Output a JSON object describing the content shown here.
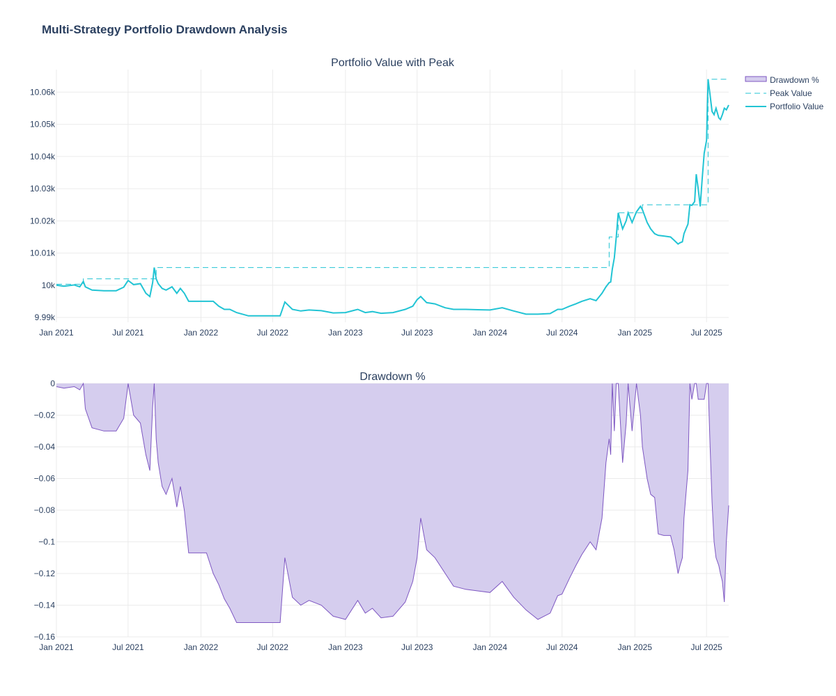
{
  "title": "Multi-Strategy Portfolio Drawdown Analysis",
  "colors": {
    "portfolio": "#22c4d4",
    "peak": "#22c4d4",
    "drawdown_line": "#7e57c2",
    "drawdown_fill": "#d5cdee",
    "grid": "#ebebeb"
  },
  "chart_data": [
    {
      "type": "line",
      "title": "Portfolio Value with Peak",
      "xlabel": "",
      "ylabel": "",
      "x_ticks": [
        "Jan 2021",
        "Jul 2021",
        "Jan 2022",
        "Jul 2022",
        "Jan 2023",
        "Jul 2023",
        "Jan 2024",
        "Jul 2024",
        "Jan 2025",
        "Jul 2025"
      ],
      "y_ticks": [
        "9.99k",
        "10k",
        "10.01k",
        "10.02k",
        "10.03k",
        "10.04k",
        "10.05k",
        "10.06k"
      ],
      "xlim": [
        "2021-01-01",
        "2025-08-26"
      ],
      "ylim": [
        9988.5,
        10067
      ],
      "grid": true,
      "legend": "top-right",
      "series": [
        {
          "name": "Peak Value",
          "style": "dashed",
          "x": [
            "2021-01-01",
            "2021-03-10",
            "2021-03-10",
            "2021-09-10",
            "2021-09-10",
            "2024-10-28",
            "2024-10-28",
            "2024-11-20",
            "2024-11-20",
            "2025-01-20",
            "2025-01-20",
            "2025-07-05",
            "2025-07-05",
            "2025-08-26"
          ],
          "y": [
            10000.3,
            10000.3,
            10002,
            10002,
            10005.5,
            10005.5,
            10015,
            10015,
            10022.5,
            10022.5,
            10025,
            10025,
            10064,
            10064
          ]
        },
        {
          "name": "Portfolio Value",
          "style": "solid",
          "x": [
            "2021-01-01",
            "2021-01-20",
            "2021-02-15",
            "2021-03-01",
            "2021-03-10",
            "2021-03-15",
            "2021-04-01",
            "2021-05-01",
            "2021-06-01",
            "2021-06-20",
            "2021-07-01",
            "2021-07-15",
            "2021-08-01",
            "2021-08-15",
            "2021-08-25",
            "2021-09-01",
            "2021-09-05",
            "2021-09-10",
            "2021-09-15",
            "2021-09-25",
            "2021-10-05",
            "2021-10-20",
            "2021-11-01",
            "2021-11-10",
            "2021-11-20",
            "2021-12-01",
            "2021-12-10",
            "2022-01-15",
            "2022-02-01",
            "2022-02-15",
            "2022-03-01",
            "2022-03-15",
            "2022-04-01",
            "2022-05-01",
            "2022-06-01",
            "2022-07-01",
            "2022-07-20",
            "2022-08-01",
            "2022-08-20",
            "2022-09-10",
            "2022-10-01",
            "2022-11-01",
            "2022-12-01",
            "2023-01-01",
            "2023-02-01",
            "2023-02-20",
            "2023-03-10",
            "2023-04-01",
            "2023-05-01",
            "2023-06-01",
            "2023-06-20",
            "2023-07-01",
            "2023-07-10",
            "2023-07-25",
            "2023-08-15",
            "2023-09-10",
            "2023-10-01",
            "2023-11-01",
            "2023-12-01",
            "2024-01-01",
            "2024-02-01",
            "2024-03-01",
            "2024-04-01",
            "2024-05-01",
            "2024-06-01",
            "2024-06-20",
            "2024-07-01",
            "2024-07-20",
            "2024-08-05",
            "2024-08-20",
            "2024-09-10",
            "2024-09-25",
            "2024-10-10",
            "2024-10-20",
            "2024-10-28",
            "2024-11-01",
            "2024-11-05",
            "2024-11-10",
            "2024-11-15",
            "2024-11-20",
            "2024-12-01",
            "2024-12-10",
            "2024-12-15",
            "2024-12-25",
            "2025-01-05",
            "2025-01-15",
            "2025-01-20",
            "2025-02-01",
            "2025-02-10",
            "2025-02-20",
            "2025-03-01",
            "2025-03-15",
            "2025-04-01",
            "2025-04-10",
            "2025-04-20",
            "2025-04-25",
            "2025-05-01",
            "2025-05-05",
            "2025-05-10",
            "2025-05-15",
            "2025-05-20",
            "2025-05-25",
            "2025-06-01",
            "2025-06-05",
            "2025-06-10",
            "2025-06-15",
            "2025-06-20",
            "2025-06-25",
            "2025-07-01",
            "2025-07-05",
            "2025-07-10",
            "2025-07-15",
            "2025-07-20",
            "2025-07-25",
            "2025-08-01",
            "2025-08-05",
            "2025-08-10",
            "2025-08-15",
            "2025-08-20",
            "2025-08-26"
          ],
          "y": [
            10000,
            9999.7,
            10000.1,
            9999.5,
            10001.2,
            9999.5,
            9998.5,
            9998.3,
            9998.3,
            9999.4,
            10001.5,
            10000.2,
            10000.5,
            9997.5,
            9996.5,
            10000.8,
            10005.5,
            10002,
            10000.5,
            9999,
            9998.5,
            9999.5,
            9997.5,
            9999,
            9997.5,
            9995,
            9995,
            9995,
            9995,
            9993.5,
            9992.5,
            9992.5,
            9991.5,
            9990.5,
            9990.5,
            9990.5,
            9990.5,
            9994.8,
            9992.5,
            9992,
            9992.3,
            9992.1,
            9991.4,
            9991.5,
            9992.5,
            9991.5,
            9991.8,
            9991.3,
            9991.5,
            9992.5,
            9993.5,
            9995.5,
            9996.5,
            9994.6,
            9994.2,
            9993,
            9992.5,
            9992.5,
            9992.4,
            9992.3,
            9993,
            9992,
            9991,
            9991,
            9991.2,
            9992.5,
            9992.5,
            9993.5,
            9994.2,
            9995,
            9995.8,
            9995.2,
            9997.5,
            9999.5,
            10000.8,
            10001,
            10005,
            10008.5,
            10015,
            10022.5,
            10017.5,
            10020,
            10022.5,
            10019.5,
            10022.8,
            10024.5,
            10023.5,
            10019.5,
            10017.5,
            10016,
            10015.5,
            10015.3,
            10015,
            10014,
            10012.8,
            10013.2,
            10013.5,
            10016,
            10017.5,
            10019,
            10025,
            10024.8,
            10026,
            10034.5,
            10030,
            10024.5,
            10033,
            10041,
            10045,
            10064,
            10059,
            10054,
            10053,
            10055,
            10052,
            10051.5,
            10053,
            10055,
            10054.5,
            10056
          ]
        }
      ]
    },
    {
      "type": "area",
      "title": "Drawdown %",
      "xlabel": "",
      "ylabel": "",
      "x_ticks": [
        "Jan 2021",
        "Jul 2021",
        "Jan 2022",
        "Jul 2022",
        "Jan 2023",
        "Jul 2023",
        "Jan 2024",
        "Jul 2024",
        "Jan 2025",
        "Jul 2025"
      ],
      "y_ticks": [
        "0",
        "−0.02",
        "−0.04",
        "−0.06",
        "−0.08",
        "−0.1",
        "−0.12",
        "−0.14",
        "−0.16"
      ],
      "xlim": [
        "2021-01-01",
        "2025-08-26"
      ],
      "ylim": [
        -0.16,
        0
      ],
      "grid": true,
      "series": [
        {
          "name": "Drawdown %",
          "x": [
            "2021-01-01",
            "2021-01-20",
            "2021-02-15",
            "2021-03-01",
            "2021-03-10",
            "2021-03-15",
            "2021-04-01",
            "2021-05-01",
            "2021-06-01",
            "2021-06-20",
            "2021-07-01",
            "2021-07-15",
            "2021-08-01",
            "2021-08-15",
            "2021-08-25",
            "2021-09-01",
            "2021-09-05",
            "2021-09-10",
            "2021-09-15",
            "2021-09-25",
            "2021-10-05",
            "2021-10-20",
            "2021-11-01",
            "2021-11-10",
            "2021-11-20",
            "2021-12-01",
            "2021-12-10",
            "2022-01-15",
            "2022-02-01",
            "2022-02-15",
            "2022-03-01",
            "2022-03-15",
            "2022-04-01",
            "2022-05-01",
            "2022-06-01",
            "2022-07-01",
            "2022-07-20",
            "2022-08-01",
            "2022-08-20",
            "2022-09-10",
            "2022-10-01",
            "2022-11-01",
            "2022-12-01",
            "2023-01-01",
            "2023-02-01",
            "2023-02-20",
            "2023-03-10",
            "2023-04-01",
            "2023-05-01",
            "2023-06-01",
            "2023-06-20",
            "2023-07-01",
            "2023-07-10",
            "2023-07-25",
            "2023-08-15",
            "2023-09-10",
            "2023-10-01",
            "2023-11-01",
            "2023-12-01",
            "2024-01-01",
            "2024-02-01",
            "2024-03-01",
            "2024-04-01",
            "2024-05-01",
            "2024-06-01",
            "2024-06-20",
            "2024-07-01",
            "2024-07-20",
            "2024-08-05",
            "2024-08-20",
            "2024-09-10",
            "2024-09-25",
            "2024-10-10",
            "2024-10-20",
            "2024-10-28",
            "2024-11-01",
            "2024-11-05",
            "2024-11-10",
            "2024-11-15",
            "2024-11-20",
            "2024-12-01",
            "2024-12-10",
            "2024-12-15",
            "2024-12-25",
            "2025-01-05",
            "2025-01-15",
            "2025-01-20",
            "2025-02-01",
            "2025-02-10",
            "2025-02-20",
            "2025-03-01",
            "2025-03-15",
            "2025-04-01",
            "2025-04-10",
            "2025-04-20",
            "2025-04-25",
            "2025-05-01",
            "2025-05-05",
            "2025-05-10",
            "2025-05-15",
            "2025-05-20",
            "2025-05-25",
            "2025-06-01",
            "2025-06-05",
            "2025-06-10",
            "2025-06-15",
            "2025-06-20",
            "2025-06-25",
            "2025-07-01",
            "2025-07-05",
            "2025-07-10",
            "2025-07-15",
            "2025-07-20",
            "2025-07-25",
            "2025-08-01",
            "2025-08-05",
            "2025-08-10",
            "2025-08-15",
            "2025-08-20",
            "2025-08-26"
          ],
          "y": [
            -0.002,
            -0.003,
            -0.002,
            -0.004,
            0,
            -0.016,
            -0.028,
            -0.03,
            -0.03,
            -0.022,
            0,
            -0.02,
            -0.025,
            -0.045,
            -0.055,
            -0.015,
            0,
            -0.035,
            -0.05,
            -0.065,
            -0.07,
            -0.06,
            -0.078,
            -0.065,
            -0.08,
            -0.107,
            -0.107,
            -0.107,
            -0.12,
            -0.127,
            -0.136,
            -0.142,
            -0.151,
            -0.151,
            -0.151,
            -0.151,
            -0.151,
            -0.11,
            -0.135,
            -0.14,
            -0.137,
            -0.14,
            -0.147,
            -0.149,
            -0.137,
            -0.145,
            -0.142,
            -0.148,
            -0.147,
            -0.138,
            -0.125,
            -0.11,
            -0.085,
            -0.105,
            -0.11,
            -0.12,
            -0.128,
            -0.13,
            -0.131,
            -0.132,
            -0.125,
            -0.135,
            -0.143,
            -0.149,
            -0.145,
            -0.134,
            -0.133,
            -0.123,
            -0.115,
            -0.108,
            -0.1,
            -0.105,
            -0.085,
            -0.05,
            -0.035,
            -0.045,
            0,
            -0.03,
            0,
            0,
            -0.05,
            -0.025,
            0,
            -0.03,
            0,
            -0.02,
            -0.04,
            -0.06,
            -0.07,
            -0.072,
            -0.095,
            -0.096,
            -0.096,
            -0.105,
            -0.12,
            -0.115,
            -0.11,
            -0.085,
            -0.07,
            -0.055,
            0,
            -0.01,
            0,
            0,
            -0.01,
            -0.01,
            -0.01,
            -0.01,
            0,
            0,
            -0.04,
            -0.075,
            -0.1,
            -0.11,
            -0.115,
            -0.12,
            -0.125,
            -0.138,
            -0.1,
            -0.077
          ]
        }
      ]
    }
  ]
}
